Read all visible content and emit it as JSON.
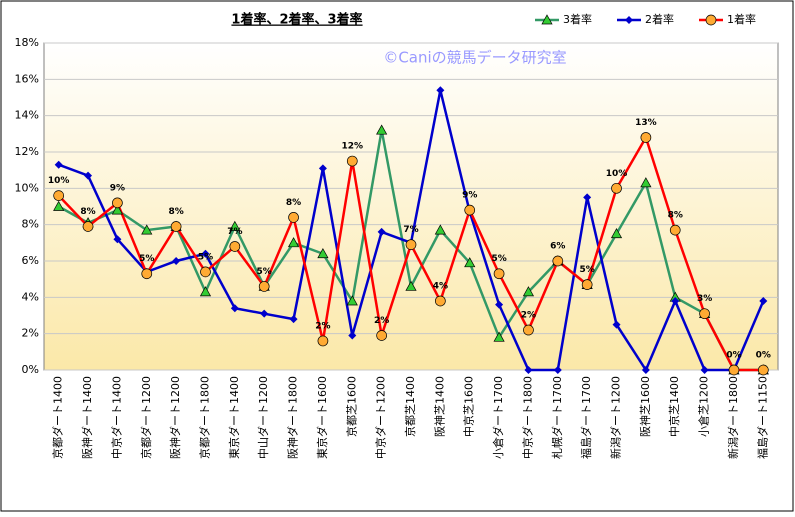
{
  "chart_data": {
    "type": "line",
    "title": "1着率、2着率、3着率",
    "watermark": "©Caniの競馬データ研究室",
    "categories": [
      "京都ダート1400",
      "阪神ダート1400",
      "中京ダート1400",
      "京都ダート1200",
      "阪神ダート1200",
      "京都ダート1800",
      "東京ダート1400",
      "中山ダート1200",
      "阪神ダート1800",
      "東京ダート1600",
      "京都芝1600",
      "中京ダート1200",
      "京都芝1400",
      "阪神芝1400",
      "中京芝1600",
      "小倉ダート1700",
      "中京ダート1800",
      "札幌ダート1700",
      "福島ダート1700",
      "新潟ダート1200",
      "阪神芝1600",
      "中京芝1400",
      "小倉芝1200",
      "新潟ダート1800",
      "福島ダート1150"
    ],
    "series": [
      {
        "name": "3着率",
        "color": "#339966",
        "marker": "triangle",
        "values": [
          9.0,
          8.1,
          8.8,
          7.7,
          7.9,
          4.3,
          7.9,
          4.6,
          7.0,
          6.4,
          3.8,
          13.2,
          4.6,
          7.7,
          5.9,
          1.8,
          4.3,
          6.0,
          4.7,
          7.5,
          10.3,
          4.0,
          3.1,
          0,
          0
        ]
      },
      {
        "name": "2着率",
        "color": "#0000cc",
        "marker": "diamond",
        "values": [
          11.3,
          10.7,
          7.2,
          5.4,
          6.0,
          6.4,
          3.4,
          3.1,
          2.8,
          11.1,
          1.9,
          7.6,
          7.0,
          15.4,
          8.7,
          3.6,
          0,
          0,
          9.5,
          2.5,
          0,
          3.8,
          0,
          0,
          3.8
        ]
      },
      {
        "name": "1着率",
        "color": "#ff0000",
        "marker": "circle",
        "values": [
          9.6,
          7.9,
          9.2,
          5.3,
          7.9,
          5.4,
          6.8,
          4.6,
          8.4,
          1.6,
          11.5,
          1.9,
          6.9,
          3.8,
          8.8,
          5.3,
          2.2,
          6.0,
          4.7,
          10.0,
          12.8,
          7.7,
          3.1,
          0,
          0
        ],
        "value_labels": [
          "10%",
          "8%",
          "9%",
          "5%",
          "8%",
          "5%",
          "7%",
          "5%",
          "8%",
          "2%",
          "12%",
          "2%",
          "7%",
          "4%",
          "9%",
          "5%",
          "2%",
          "6%",
          "5%",
          "10%",
          "13%",
          "8%",
          "3%",
          "0%",
          "0%"
        ]
      }
    ],
    "ylim": [
      0,
      18
    ],
    "yticks": [
      {
        "value": 0,
        "label": "0%"
      },
      {
        "value": 2,
        "label": "2%"
      },
      {
        "value": 4,
        "label": "4%"
      },
      {
        "value": 6,
        "label": "6%"
      },
      {
        "value": 8,
        "label": "8%"
      },
      {
        "value": 10,
        "label": "10%"
      },
      {
        "value": 12,
        "label": "12%"
      },
      {
        "value": 14,
        "label": "14%"
      },
      {
        "value": 16,
        "label": "16%"
      },
      {
        "value": 18,
        "label": "18%"
      }
    ],
    "grid": true,
    "legend": "top-right"
  }
}
